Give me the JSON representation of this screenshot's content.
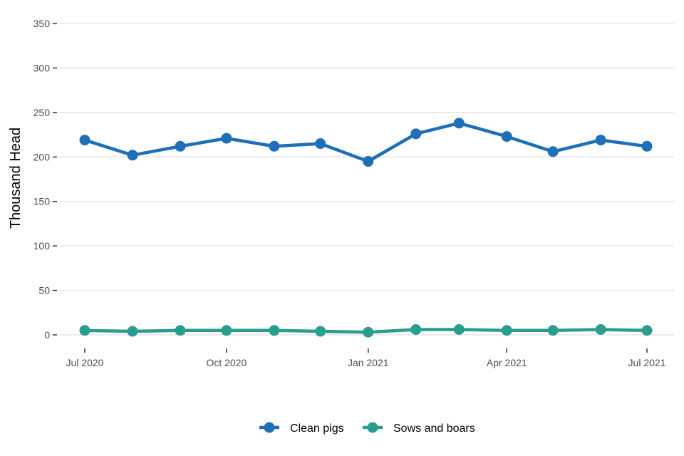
{
  "chart_data": {
    "type": "line",
    "ylabel": "Thousand Head",
    "xlabel": "",
    "title": "",
    "ylim": [
      0,
      350
    ],
    "yticks": [
      0,
      50,
      100,
      150,
      200,
      250,
      300,
      350
    ],
    "x": [
      "2020-07-01",
      "2020-08-01",
      "2020-09-01",
      "2020-10-01",
      "2020-11-01",
      "2020-12-01",
      "2021-01-01",
      "2021-02-01",
      "2021-03-01",
      "2021-04-01",
      "2021-05-01",
      "2021-06-01",
      "2021-07-01"
    ],
    "xticks": [
      {
        "date": "2020-07-01",
        "label": "Jul 2020"
      },
      {
        "date": "2020-10-01",
        "label": "Oct 2020"
      },
      {
        "date": "2021-01-01",
        "label": "Jan 2021"
      },
      {
        "date": "2021-04-01",
        "label": "Apr 2021"
      },
      {
        "date": "2021-07-01",
        "label": "Jul 2021"
      }
    ],
    "series": [
      {
        "name": "Clean pigs",
        "color": "#1f6eb8",
        "values": [
          219,
          202,
          212,
          221,
          212,
          215,
          195,
          226,
          238,
          223,
          206,
          219,
          212
        ]
      },
      {
        "name": "Sows and boars",
        "color": "#2a9d8f",
        "values": [
          5,
          4,
          5,
          5,
          5,
          4,
          3,
          6,
          6,
          5,
          5,
          6,
          5
        ]
      }
    ],
    "grid": true,
    "legend_position": "bottom"
  }
}
